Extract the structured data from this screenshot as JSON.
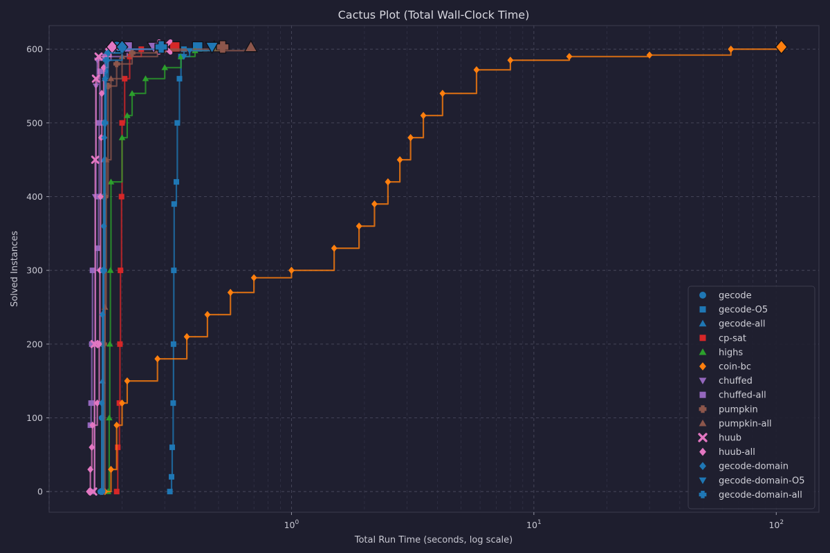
{
  "chart_data": {
    "type": "line",
    "title": "Cactus Plot (Total Wall-Clock Time)",
    "xlabel": "Total Run Time (seconds, log scale)",
    "ylabel": "Solved Instances",
    "xscale": "log",
    "xlim": [
      0.1,
      150
    ],
    "ylim": [
      -28,
      632
    ],
    "x_ticks": [
      {
        "value": 1,
        "label": "10",
        "exp": "0"
      },
      {
        "value": 10,
        "label": "10",
        "exp": "1"
      },
      {
        "value": 100,
        "label": "10",
        "exp": "2"
      }
    ],
    "y_ticks": [
      0,
      100,
      200,
      300,
      400,
      500,
      600
    ],
    "grid": true,
    "legend_position": "lower-right",
    "series": [
      {
        "name": "gecode",
        "color": "#1f77b4",
        "marker": "circle",
        "points": [
          [
            0.163,
            0
          ],
          [
            0.165,
            100
          ],
          [
            0.166,
            200
          ],
          [
            0.167,
            300
          ],
          [
            0.168,
            400
          ],
          [
            0.169,
            500
          ],
          [
            0.17,
            570
          ],
          [
            0.172,
            590
          ],
          [
            0.178,
            602
          ],
          [
            0.19,
            603
          ]
        ]
      },
      {
        "name": "gecode-O5",
        "color": "#1f77b4",
        "marker": "square",
        "points": [
          [
            0.315,
            0
          ],
          [
            0.32,
            20
          ],
          [
            0.322,
            60
          ],
          [
            0.325,
            120
          ],
          [
            0.326,
            200
          ],
          [
            0.327,
            300
          ],
          [
            0.328,
            390
          ],
          [
            0.335,
            420
          ],
          [
            0.338,
            500
          ],
          [
            0.345,
            560
          ],
          [
            0.35,
            590
          ],
          [
            0.36,
            600
          ],
          [
            0.41,
            603
          ]
        ]
      },
      {
        "name": "gecode-all",
        "color": "#1f77b4",
        "marker": "triangle-up",
        "points": [
          [
            0.164,
            0
          ],
          [
            0.166,
            150
          ],
          [
            0.167,
            300
          ],
          [
            0.168,
            450
          ],
          [
            0.17,
            560
          ],
          [
            0.172,
            595
          ],
          [
            0.2,
            603
          ]
        ]
      },
      {
        "name": "cp-sat",
        "color": "#d62728",
        "marker": "square",
        "points": [
          [
            0.19,
            0
          ],
          [
            0.192,
            60
          ],
          [
            0.195,
            120
          ],
          [
            0.196,
            200
          ],
          [
            0.197,
            300
          ],
          [
            0.199,
            400
          ],
          [
            0.2,
            500
          ],
          [
            0.205,
            560
          ],
          [
            0.215,
            590
          ],
          [
            0.24,
            600
          ],
          [
            0.33,
            603
          ]
        ]
      },
      {
        "name": "highs",
        "color": "#2ca02c",
        "marker": "triangle-up",
        "points": [
          [
            0.175,
            0
          ],
          [
            0.177,
            100
          ],
          [
            0.178,
            200
          ],
          [
            0.179,
            300
          ],
          [
            0.18,
            420
          ],
          [
            0.2,
            480
          ],
          [
            0.21,
            510
          ],
          [
            0.22,
            540
          ],
          [
            0.25,
            560
          ],
          [
            0.3,
            575
          ],
          [
            0.35,
            590
          ],
          [
            0.4,
            598
          ],
          [
            0.48,
            603
          ]
        ]
      },
      {
        "name": "coin-bc",
        "color": "#ff7f0e",
        "marker": "diamond",
        "points": [
          [
            0.17,
            0
          ],
          [
            0.18,
            30
          ],
          [
            0.19,
            90
          ],
          [
            0.2,
            120
          ],
          [
            0.21,
            150
          ],
          [
            0.28,
            180
          ],
          [
            0.37,
            210
          ],
          [
            0.45,
            240
          ],
          [
            0.56,
            270
          ],
          [
            0.7,
            290
          ],
          [
            1.0,
            300
          ],
          [
            1.5,
            330
          ],
          [
            1.9,
            360
          ],
          [
            2.2,
            390
          ],
          [
            2.5,
            420
          ],
          [
            2.8,
            450
          ],
          [
            3.1,
            480
          ],
          [
            3.5,
            510
          ],
          [
            4.2,
            540
          ],
          [
            5.8,
            572
          ],
          [
            8,
            585
          ],
          [
            14,
            590
          ],
          [
            30,
            592
          ],
          [
            65,
            600
          ],
          [
            105,
            603
          ]
        ]
      },
      {
        "name": "chuffed",
        "color": "#9467bd",
        "marker": "triangle-down",
        "points": [
          [
            0.152,
            0
          ],
          [
            0.154,
            200
          ],
          [
            0.155,
            400
          ],
          [
            0.156,
            550
          ],
          [
            0.158,
            585
          ],
          [
            0.18,
            600
          ],
          [
            0.27,
            603
          ]
        ]
      },
      {
        "name": "chuffed-all",
        "color": "#9467bd",
        "marker": "square",
        "points": [
          [
            0.148,
            90
          ],
          [
            0.149,
            120
          ],
          [
            0.15,
            200
          ],
          [
            0.151,
            300
          ],
          [
            0.158,
            330
          ],
          [
            0.16,
            400
          ],
          [
            0.161,
            500
          ],
          [
            0.162,
            570
          ],
          [
            0.17,
            590
          ],
          [
            0.21,
            603
          ]
        ]
      },
      {
        "name": "pumpkin",
        "color": "#8c564b",
        "marker": "plus",
        "points": [
          [
            0.165,
            0
          ],
          [
            0.168,
            200
          ],
          [
            0.17,
            400
          ],
          [
            0.175,
            550
          ],
          [
            0.19,
            580
          ],
          [
            0.22,
            595
          ],
          [
            0.3,
            600
          ],
          [
            0.52,
            603
          ]
        ]
      },
      {
        "name": "pumpkin-all",
        "color": "#8c564b",
        "marker": "triangle-up",
        "points": [
          [
            0.166,
            0
          ],
          [
            0.17,
            250
          ],
          [
            0.172,
            450
          ],
          [
            0.18,
            560
          ],
          [
            0.2,
            590
          ],
          [
            0.28,
            598
          ],
          [
            0.68,
            603
          ]
        ]
      },
      {
        "name": "huub",
        "color": "#e377c2",
        "marker": "x",
        "points": [
          [
            0.152,
            0
          ],
          [
            0.154,
            200
          ],
          [
            0.155,
            450
          ],
          [
            0.156,
            560
          ],
          [
            0.16,
            590
          ],
          [
            0.18,
            600
          ],
          [
            0.3,
            603
          ]
        ]
      },
      {
        "name": "huub-all",
        "color": "#e377c2",
        "marker": "diamond",
        "points": [
          [
            0.146,
            0
          ],
          [
            0.148,
            30
          ],
          [
            0.15,
            60
          ],
          [
            0.151,
            90
          ],
          [
            0.158,
            120
          ],
          [
            0.161,
            200
          ],
          [
            0.162,
            300
          ],
          [
            0.163,
            400
          ],
          [
            0.164,
            480
          ],
          [
            0.165,
            540
          ],
          [
            0.168,
            575
          ],
          [
            0.175,
            600
          ],
          [
            0.182,
            603
          ]
        ]
      },
      {
        "name": "gecode-domain",
        "color": "#1f77b4",
        "marker": "diamond",
        "points": [
          [
            0.163,
            0
          ],
          [
            0.165,
            120
          ],
          [
            0.166,
            240
          ],
          [
            0.168,
            360
          ],
          [
            0.169,
            480
          ],
          [
            0.17,
            560
          ],
          [
            0.175,
            595
          ],
          [
            0.2,
            603
          ]
        ]
      },
      {
        "name": "gecode-domain-O5",
        "color": "#1f77b4",
        "marker": "triangle-down",
        "points": [
          [
            0.36,
            590
          ],
          [
            0.38,
            598
          ],
          [
            0.47,
            603
          ]
        ]
      },
      {
        "name": "gecode-domain-all",
        "color": "#1f77b4",
        "marker": "plus",
        "points": [
          [
            0.165,
            0
          ],
          [
            0.168,
            300
          ],
          [
            0.17,
            500
          ],
          [
            0.172,
            585
          ],
          [
            0.2,
            600
          ],
          [
            0.29,
            603
          ]
        ]
      }
    ]
  }
}
